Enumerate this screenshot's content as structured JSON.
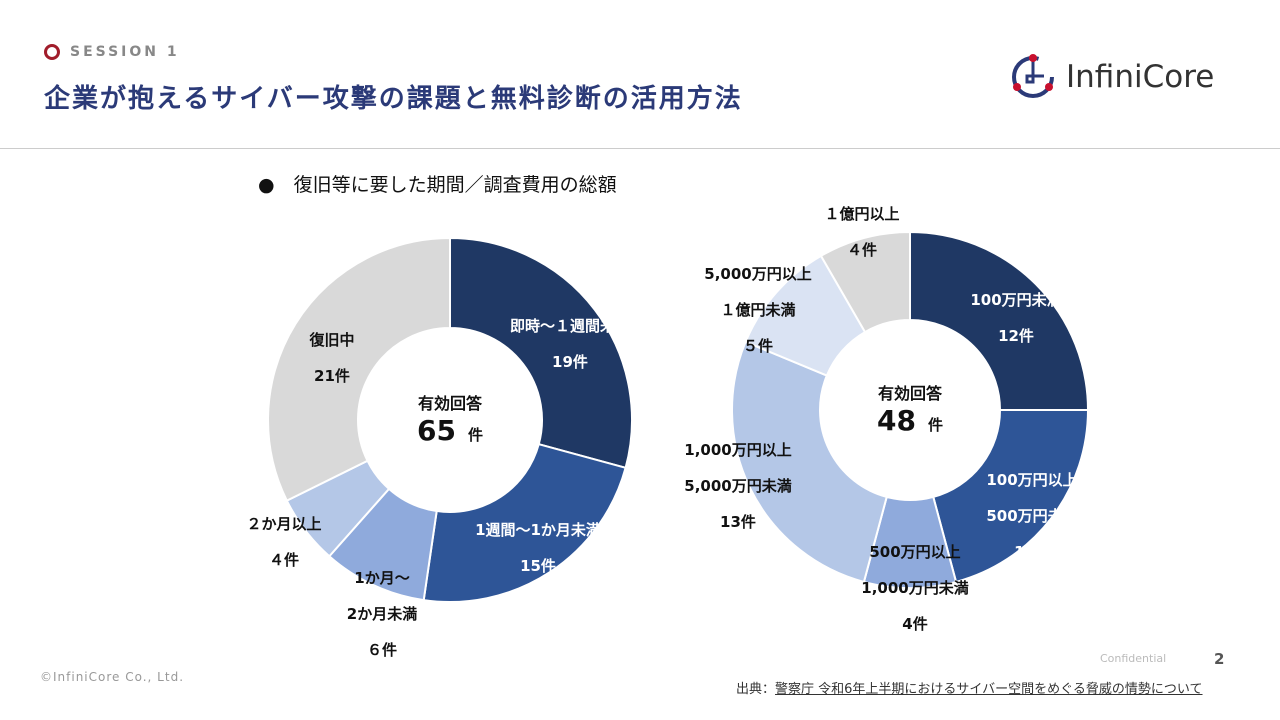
{
  "header": {
    "session": "SESSION 1",
    "title": "企業が抱えるサイバー攻撃の課題と無料診断の活用方法",
    "logo_text": "InfiniCore",
    "colors": {
      "title": "#2b3a78",
      "accent": "#a11d2b"
    }
  },
  "subtitle": "●　復旧等に要した期間／調査費用の総額",
  "chart_data": [
    {
      "type": "pie",
      "donut": true,
      "start": "top",
      "direction": "clockwise",
      "center": {
        "label": "有効回答",
        "value": "65",
        "unit": "件"
      },
      "slices": [
        {
          "label": "即時～１週間未満",
          "count": "19件",
          "value": 19,
          "color": "#1f3864"
        },
        {
          "label": "1週間～1か月未満",
          "count": "15件",
          "value": 15,
          "color": "#2e5597"
        },
        {
          "label": "1か月～\n2か月未満",
          "count": "６件",
          "value": 6,
          "color": "#8faadc"
        },
        {
          "label": "２か月以上",
          "count": "４件",
          "value": 4,
          "color": "#b4c7e7"
        },
        {
          "label": "復旧中",
          "count": "21件",
          "value": 21,
          "color": "#d9d9d9"
        }
      ]
    },
    {
      "type": "pie",
      "donut": true,
      "start": "top",
      "direction": "clockwise",
      "center": {
        "label": "有効回答",
        "value": "48",
        "unit": "件"
      },
      "slices": [
        {
          "label": "100万円未満",
          "count": "12件",
          "value": 12,
          "color": "#1f3864"
        },
        {
          "label": "100万円以上\n500万円未満",
          "count": "10件",
          "value": 10,
          "color": "#2e5597"
        },
        {
          "label": "500万円以上\n1,000万円未満",
          "count": "4件",
          "value": 4,
          "color": "#8faadc"
        },
        {
          "label": "1,000万円以上\n5,000万円未満",
          "count": "13件",
          "value": 13,
          "color": "#b4c7e7"
        },
        {
          "label": "5,000万円以上\n１億円未満",
          "count": "５件",
          "value": 5,
          "color": "#dae3f3"
        },
        {
          "label": "１億円以上",
          "count": "４件",
          "value": 4,
          "color": "#d9d9d9"
        }
      ]
    }
  ],
  "footer": {
    "copyright": "©InfiniCore Co., Ltd.",
    "page": "2",
    "confidential": "Confidential",
    "source_prefix": "出典：",
    "source_link": "警察庁 令和6年上半期におけるサイバー空間をめぐる脅威の情勢について"
  }
}
